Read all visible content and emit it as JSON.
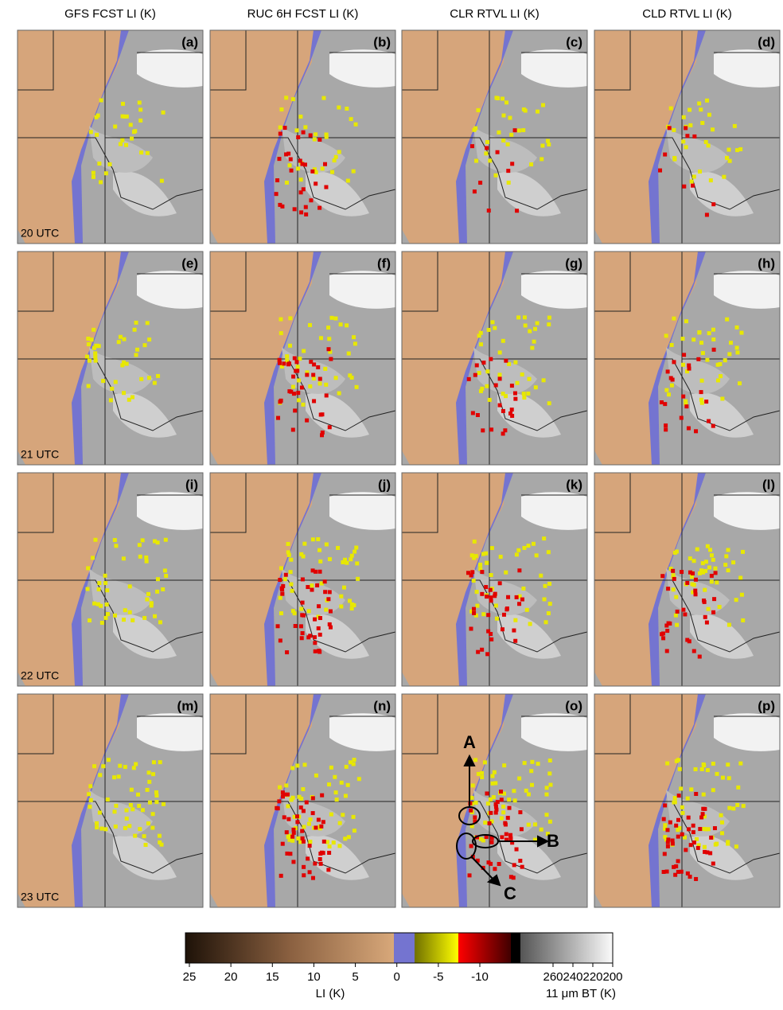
{
  "column_headers": [
    "GFS FCST LI (K)",
    "RUC 6H FCST LI (K)",
    "CLR RTVL LI (K)",
    "CLD RTVL LI (K)"
  ],
  "panels": [
    "(a)",
    "(b)",
    "(c)",
    "(d)",
    "(e)",
    "(f)",
    "(g)",
    "(h)",
    "(i)",
    "(j)",
    "(k)",
    "(l)",
    "(m)",
    "(n)",
    "(o)",
    "(p)"
  ],
  "row_labels": [
    "20 UTC",
    "21 UTC",
    "22 UTC",
    "23 UTC"
  ],
  "annotations": [
    "A",
    "B",
    "C"
  ],
  "colorbar": {
    "li_ticks": [
      25,
      20,
      15,
      10,
      5,
      0,
      -5,
      -10
    ],
    "li_label": "LI (K)",
    "bt_ticks": [
      260,
      240,
      220,
      200
    ],
    "bt_label": "11 μm BT (K)"
  }
}
